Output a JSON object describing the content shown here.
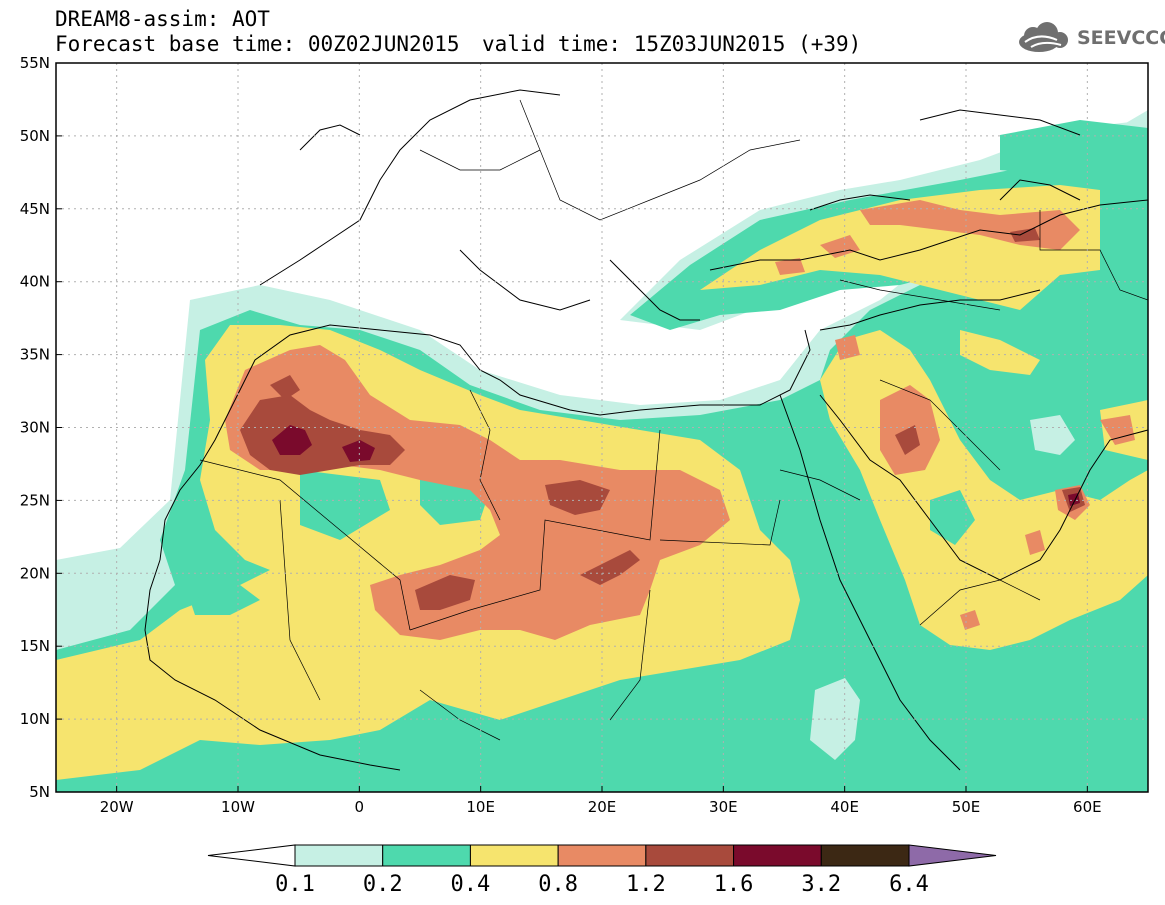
{
  "header": {
    "line1": "DREAM8-assim: AOT",
    "line2": "Forecast base time: 00Z02JUN2015",
    "line3": "valid time: 15Z03JUN2015 (+39)"
  },
  "logo": {
    "text": "SEEVCCC",
    "icon": "cloud-icon"
  },
  "map": {
    "lat_range": [
      5,
      55
    ],
    "lon_range": [
      -25,
      65
    ],
    "lat_labels": [
      "55N",
      "50N",
      "45N",
      "40N",
      "35N",
      "30N",
      "25N",
      "20N",
      "15N",
      "10N",
      "5N"
    ],
    "lon_labels": [
      "20W",
      "10W",
      "0",
      "10E",
      "20E",
      "30E",
      "40E",
      "50E",
      "60E"
    ]
  },
  "legend": {
    "labels": [
      "0.1",
      "0.2",
      "0.4",
      "0.8",
      "1.2",
      "1.6",
      "3.2",
      "6.4"
    ],
    "colors": [
      "#ffffff",
      "#c6f0e4",
      "#4ed9ad",
      "#f6e46e",
      "#e88a64",
      "#a84a3c",
      "#7a0a2c",
      "#3c2814",
      "#8e6aa8"
    ]
  }
}
